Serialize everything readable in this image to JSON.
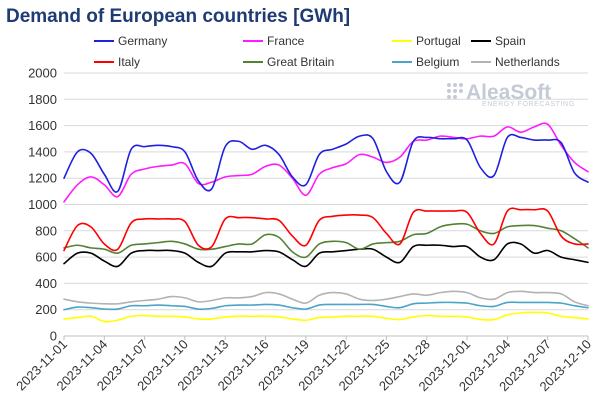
{
  "chart_data": {
    "type": "line",
    "title": "Demand of European countries [GWh]",
    "xlabel": "",
    "ylabel": "",
    "ylim": [
      0,
      2000
    ],
    "yticks": [
      0,
      200,
      400,
      600,
      800,
      1000,
      1200,
      1400,
      1600,
      1800,
      2000
    ],
    "grid": true,
    "legend_position": "top",
    "x": [
      "2023-11-01",
      "2023-11-02",
      "2023-11-03",
      "2023-11-04",
      "2023-11-05",
      "2023-11-06",
      "2023-11-07",
      "2023-11-08",
      "2023-11-09",
      "2023-11-10",
      "2023-11-11",
      "2023-11-12",
      "2023-11-13",
      "2023-11-14",
      "2023-11-15",
      "2023-11-16",
      "2023-11-17",
      "2023-11-18",
      "2023-11-19",
      "2023-11-20",
      "2023-11-21",
      "2023-11-22",
      "2023-11-23",
      "2023-11-24",
      "2023-11-25",
      "2023-11-26",
      "2023-11-27",
      "2023-11-28",
      "2023-11-29",
      "2023-11-30",
      "2023-12-01",
      "2023-12-02",
      "2023-12-03",
      "2023-12-04",
      "2023-12-05",
      "2023-12-06",
      "2023-12-07",
      "2023-12-08",
      "2023-12-09",
      "2023-12-10"
    ],
    "tick_labels": [
      "2023-11-01",
      "2023-11-04",
      "2023-11-07",
      "2023-11-10",
      "2023-11-13",
      "2023-11-16",
      "2023-11-19",
      "2023-11-22",
      "2023-11-25",
      "2023-11-28",
      "2023-12-01",
      "2023-12-04",
      "2023-12-07",
      "2023-12-10"
    ],
    "series": [
      {
        "name": "Germany",
        "color": "#1f1fe0",
        "values": [
          1200,
          1400,
          1390,
          1230,
          1100,
          1420,
          1440,
          1450,
          1440,
          1400,
          1180,
          1120,
          1440,
          1480,
          1420,
          1450,
          1380,
          1210,
          1150,
          1380,
          1420,
          1460,
          1520,
          1500,
          1250,
          1170,
          1480,
          1510,
          1500,
          1500,
          1490,
          1280,
          1220,
          1510,
          1510,
          1490,
          1490,
          1470,
          1240,
          1170
        ]
      },
      {
        "name": "France",
        "color": "#ff1aff",
        "values": [
          1020,
          1150,
          1210,
          1150,
          1060,
          1230,
          1270,
          1290,
          1300,
          1310,
          1160,
          1170,
          1210,
          1220,
          1230,
          1290,
          1300,
          1200,
          1070,
          1230,
          1280,
          1310,
          1380,
          1360,
          1320,
          1360,
          1480,
          1490,
          1520,
          1510,
          1500,
          1520,
          1520,
          1590,
          1550,
          1590,
          1610,
          1450,
          1320,
          1250
        ]
      },
      {
        "name": "Portugal",
        "color": "#ffff00",
        "values": [
          130,
          140,
          150,
          110,
          120,
          150,
          155,
          150,
          150,
          145,
          130,
          130,
          145,
          150,
          150,
          150,
          145,
          130,
          120,
          140,
          145,
          150,
          150,
          150,
          135,
          125,
          145,
          155,
          150,
          150,
          145,
          125,
          125,
          160,
          175,
          180,
          175,
          150,
          140,
          130
        ]
      },
      {
        "name": "Spain",
        "color": "#000000",
        "values": [
          550,
          630,
          630,
          570,
          530,
          630,
          650,
          650,
          650,
          630,
          560,
          530,
          630,
          640,
          640,
          650,
          640,
          580,
          530,
          630,
          640,
          650,
          660,
          660,
          600,
          560,
          680,
          690,
          690,
          680,
          680,
          600,
          580,
          700,
          700,
          630,
          650,
          600,
          580,
          560
        ]
      },
      {
        "name": "Italy",
        "color": "#ff0000",
        "values": [
          650,
          840,
          830,
          700,
          660,
          860,
          890,
          890,
          890,
          870,
          690,
          680,
          890,
          900,
          900,
          890,
          880,
          760,
          690,
          880,
          910,
          920,
          920,
          900,
          780,
          700,
          940,
          950,
          950,
          950,
          940,
          780,
          700,
          950,
          960,
          960,
          950,
          760,
          700,
          700
        ]
      },
      {
        "name": "Great Britain",
        "color": "#548235",
        "values": [
          670,
          690,
          670,
          660,
          630,
          690,
          700,
          710,
          720,
          700,
          660,
          660,
          680,
          700,
          700,
          770,
          750,
          640,
          600,
          700,
          720,
          710,
          660,
          700,
          710,
          720,
          770,
          780,
          830,
          850,
          850,
          800,
          780,
          830,
          840,
          840,
          820,
          800,
          740,
          670
        ]
      },
      {
        "name": "Belgium",
        "color": "#4ba3c7",
        "values": [
          200,
          220,
          215,
          205,
          205,
          230,
          230,
          235,
          230,
          225,
          205,
          210,
          230,
          235,
          235,
          240,
          235,
          215,
          205,
          235,
          240,
          240,
          240,
          240,
          225,
          215,
          245,
          250,
          255,
          255,
          250,
          230,
          225,
          255,
          255,
          255,
          255,
          250,
          230,
          215
        ]
      },
      {
        "name": "Netherlands",
        "color": "#b3b3b3",
        "values": [
          280,
          260,
          250,
          245,
          245,
          260,
          270,
          280,
          300,
          290,
          260,
          270,
          290,
          290,
          300,
          330,
          320,
          280,
          250,
          310,
          330,
          320,
          280,
          270,
          280,
          300,
          320,
          310,
          330,
          340,
          330,
          290,
          280,
          330,
          340,
          330,
          330,
          320,
          260,
          230
        ]
      }
    ]
  },
  "logo": {
    "name": "AleaSoft",
    "sub": "ENERGY FORECASTING"
  }
}
